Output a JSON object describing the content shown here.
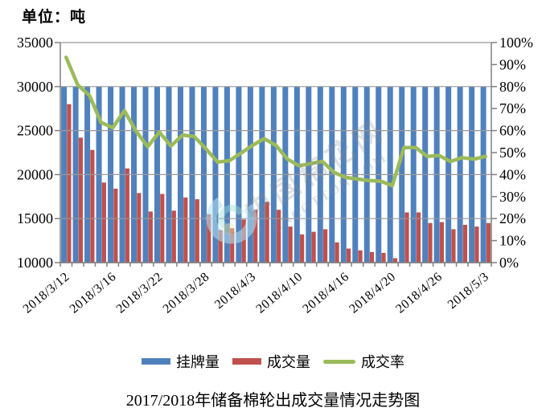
{
  "unit_label": "单位：吨",
  "title": "2017/2018年储备棉轮出成交量情况走势图",
  "watermark": {
    "text_line1": "中国棉花网",
    "text_line2": "CNCOTTON.COM"
  },
  "legend": {
    "items": [
      {
        "label": "挂牌量",
        "type": "bar",
        "color": "#4F81BD"
      },
      {
        "label": "成交量",
        "type": "bar",
        "color": "#C0504D"
      },
      {
        "label": "成交率",
        "type": "line",
        "color": "#9BBB59"
      }
    ]
  },
  "chart_data": {
    "type": "bar",
    "subtype": "bar+line combo, dual y-axis",
    "title": "2017/2018年储备棉轮出成交量情况走势图",
    "xlabel": "",
    "ylabel_left_unit": "单位：吨",
    "categories": [
      "2018/3/12",
      "2018/3/13",
      "2018/3/14",
      "2018/3/15",
      "2018/3/16",
      "2018/3/19",
      "2018/3/20",
      "2018/3/21",
      "2018/3/22",
      "2018/3/23",
      "2018/3/26",
      "2018/3/27",
      "2018/3/28",
      "2018/3/29",
      "2018/3/30",
      "2018/4/2",
      "2018/4/3",
      "2018/4/4",
      "2018/4/8",
      "2018/4/9",
      "2018/4/10",
      "2018/4/11",
      "2018/4/12",
      "2018/4/13",
      "2018/4/16",
      "2018/4/17",
      "2018/4/18",
      "2018/4/19",
      "2018/4/20",
      "2018/4/23",
      "2018/4/24",
      "2018/4/25",
      "2018/4/26",
      "2018/4/27",
      "2018/4/28",
      "2018/5/2",
      "2018/5/3"
    ],
    "series": [
      {
        "name": "挂牌量",
        "type": "bar",
        "y_axis": "left",
        "color": "#4F81BD",
        "values": [
          30000,
          30000,
          30000,
          30000,
          30000,
          30000,
          30000,
          30000,
          30000,
          30000,
          30000,
          30000,
          30000,
          30000,
          30000,
          30000,
          30000,
          30000,
          30000,
          30000,
          30000,
          30000,
          30000,
          30000,
          30000,
          30000,
          30000,
          30000,
          30000,
          30000,
          30000,
          30000,
          30000,
          30000,
          30000,
          30000,
          30000
        ]
      },
      {
        "name": "成交量",
        "type": "bar",
        "y_axis": "left",
        "color": "#C0504D",
        "values": [
          28000,
          24200,
          22800,
          19100,
          18400,
          20700,
          17900,
          15800,
          17800,
          15900,
          17400,
          17200,
          15500,
          13700,
          13900,
          14900,
          16000,
          16900,
          16000,
          14100,
          13200,
          13500,
          13800,
          12300,
          11600,
          11400,
          11200,
          11100,
          10500,
          15700,
          15700,
          14500,
          14600,
          13800,
          14300,
          14100,
          14500
        ]
      },
      {
        "name": "成交率",
        "type": "line",
        "y_axis": "right",
        "unit": "%",
        "color": "#9BBB59",
        "values": [
          93.3,
          80.7,
          76.0,
          63.7,
          61.3,
          69.0,
          59.7,
          52.7,
          59.3,
          53.0,
          58.0,
          57.3,
          51.7,
          45.7,
          46.3,
          49.7,
          53.3,
          56.3,
          53.3,
          47.0,
          44.0,
          45.0,
          46.0,
          41.0,
          38.7,
          38.0,
          37.3,
          37.0,
          35.0,
          52.3,
          52.3,
          48.3,
          48.7,
          46.0,
          47.7,
          47.0,
          48.3
        ]
      }
    ],
    "x_axis": {
      "shown_tick_labels": [
        "2018/3/12",
        "2018/3/16",
        "2018/3/22",
        "2018/3/28",
        "2018/4/3",
        "2018/4/10",
        "2018/4/16",
        "2018/4/20",
        "2018/4/26",
        "2018/5/3"
      ],
      "shown_every_n": 4
    },
    "y_axis_left": {
      "min": 10000,
      "max": 35000,
      "step": 5000,
      "tick_labels": [
        "35000",
        "30000",
        "25000",
        "20000",
        "15000",
        "10000"
      ]
    },
    "y_axis_right": {
      "min": 0,
      "max": 100,
      "step": 10,
      "tick_labels": [
        "100%",
        "90%",
        "80%",
        "70%",
        "60%",
        "50%",
        "40%",
        "30%",
        "20%",
        "10%",
        "0%"
      ]
    },
    "grid": "horizontal major gridlines, drawn over bars",
    "legend_position": "bottom-center",
    "colors": {
      "grid": "#999999",
      "axis": "#808080",
      "text": "#000000"
    }
  }
}
